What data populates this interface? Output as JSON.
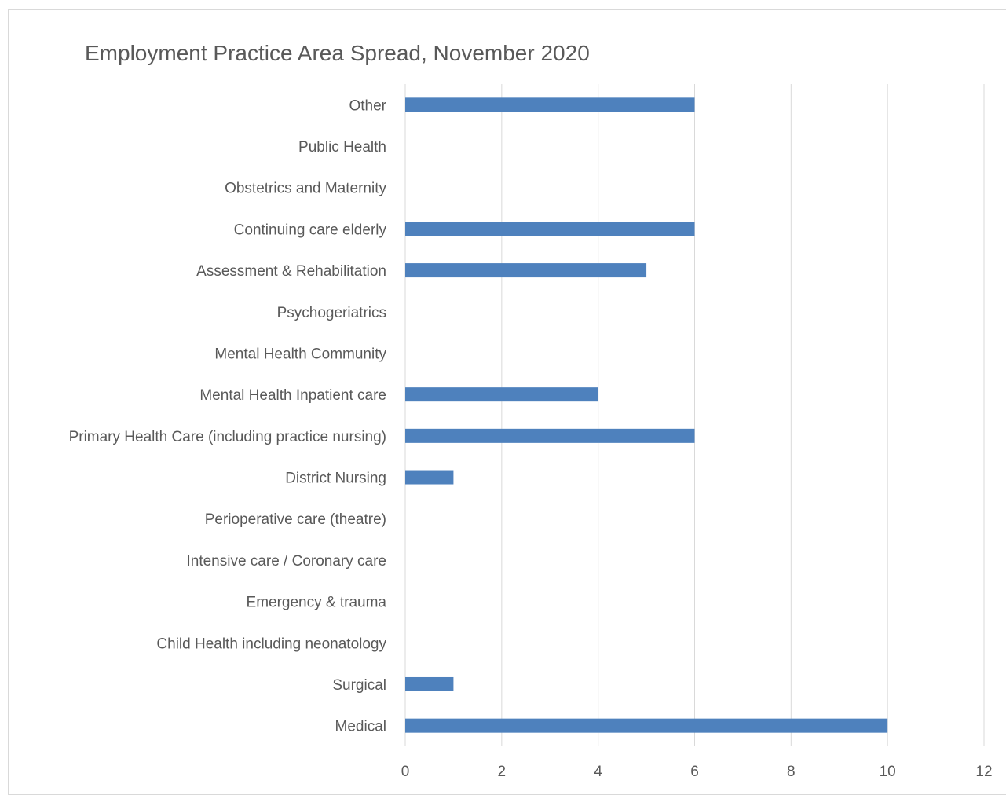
{
  "chart_data": {
    "type": "bar",
    "orientation": "horizontal",
    "title": "Employment Practice Area Spread, November 2020",
    "xlabel": "",
    "ylabel": "",
    "categories": [
      "Medical",
      "Surgical",
      "Child Health including neonatology",
      "Emergency & trauma",
      "Intensive care / Coronary care",
      "Perioperative care (theatre)",
      "District Nursing",
      "Primary Health Care (including practice nursing)",
      "Mental Health Inpatient care",
      "Mental Health Community",
      "Psychogeriatrics",
      "Assessment & Rehabilitation",
      "Continuing care elderly",
      "Obstetrics and Maternity",
      "Public Health",
      "Other"
    ],
    "values": [
      10,
      1,
      0,
      0,
      0,
      0,
      1,
      6,
      4,
      0,
      0,
      5,
      6,
      0,
      0,
      6
    ],
    "xlim": [
      0,
      12
    ],
    "xticks": [
      0,
      2,
      4,
      6,
      8,
      10,
      12
    ],
    "grid": true,
    "legend": "none",
    "colors": {
      "bar": "#4e81bd",
      "grid": "#d9d9d9",
      "text": "#595959",
      "title": "#595959"
    }
  }
}
